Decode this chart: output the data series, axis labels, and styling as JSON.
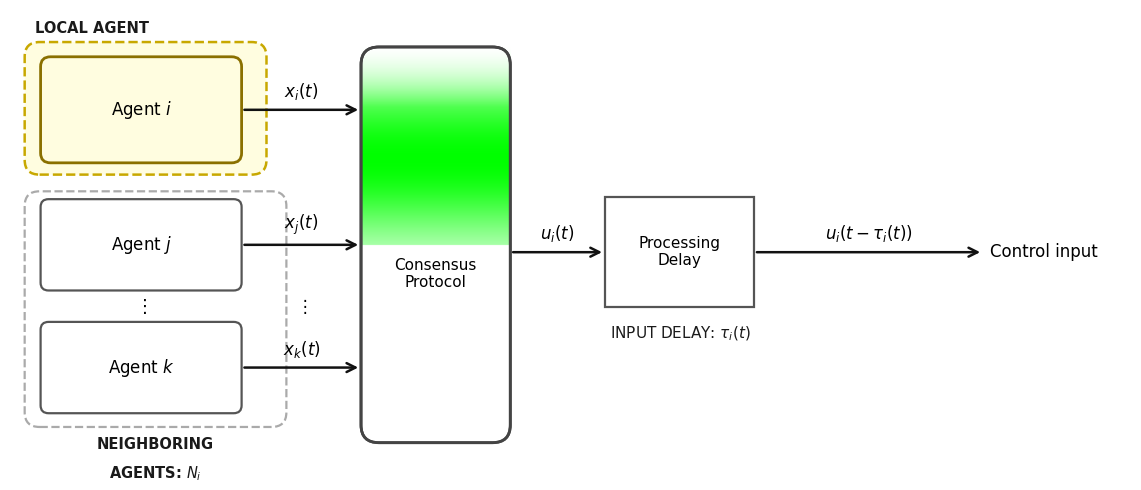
{
  "fig_width": 11.41,
  "fig_height": 4.9,
  "bg_color": "#ffffff",
  "local_agent_label": "LOCAL AGENT",
  "neighboring_label_line1": "NEIGHBORING",
  "neighboring_label_line2": "AGENTS: $N_i$",
  "agent_i_label": "Agent $i$",
  "agent_j_label": "Agent $j$",
  "agent_k_label": "Agent $k$",
  "consensus_label_line1": "Consensus",
  "consensus_label_line2": "Protocol",
  "processing_delay_label_line1": "Processing",
  "processing_delay_label_line2": "Delay",
  "input_delay_label": "INPUT DELAY: $\\tau_i(t)$",
  "xi_label": "$x_i(t)$",
  "xj_label": "$x_j(t)$",
  "xk_label": "$x_k(t)$",
  "ui_label": "$u_i(t)$",
  "ui_delayed_label": "$u_i(t - \\tau_i(t))$",
  "control_input_label": "Control input",
  "dots_label": "$\\vdots$",
  "local_box_facecolor": "#fffde0",
  "local_box_edgecolor": "#c8a800",
  "neighboring_box_facecolor": "#ffffff",
  "neighboring_box_edgecolor": "#aaaaaa",
  "agent_i_box_facecolor": "#fffde0",
  "agent_i_box_edgecolor": "#8a7000",
  "agent_jk_box_facecolor": "#ffffff",
  "agent_jk_box_edgecolor": "#555555",
  "consensus_box_edgecolor": "#444444",
  "processing_box_facecolor": "#ffffff",
  "processing_box_edgecolor": "#555555",
  "arrow_color": "#111111"
}
